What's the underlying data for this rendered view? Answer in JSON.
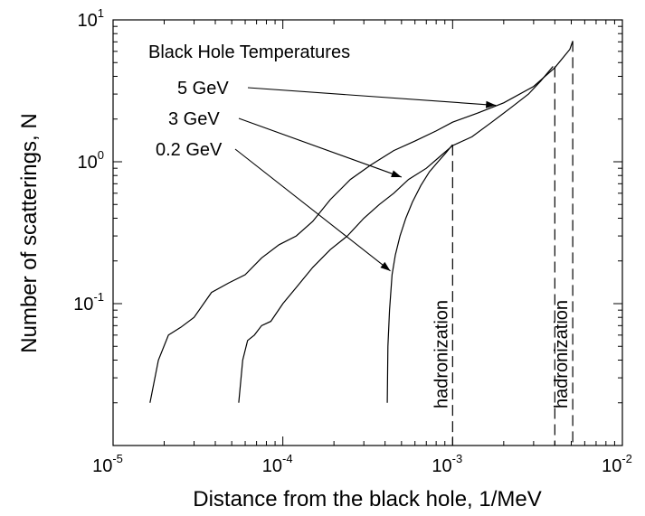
{
  "chart_data": {
    "type": "line",
    "title": "",
    "xlabel": "Distance from the black hole, 1/MeV",
    "ylabel": "Number of scatterings, N",
    "xscale": "log",
    "yscale": "log",
    "xlim": [
      1e-05,
      0.01
    ],
    "ylim": [
      0.01,
      10
    ],
    "x_ticks": [
      {
        "base": "10",
        "exp": "-5",
        "value": 1e-05
      },
      {
        "base": "10",
        "exp": "-4",
        "value": 0.0001
      },
      {
        "base": "10",
        "exp": "-3",
        "value": 0.001
      },
      {
        "base": "10",
        "exp": "-2",
        "value": 0.01
      }
    ],
    "y_ticks": [
      {
        "base": "10",
        "exp": "-1",
        "value": 0.1
      },
      {
        "base": "10",
        "exp": "0",
        "value": 1
      },
      {
        "base": "10",
        "exp": "1",
        "value": 10
      }
    ],
    "legend_title": "Black Hole Temperatures",
    "grid": false,
    "series": [
      {
        "name": "5 GeV",
        "x": [
          1.65e-05,
          1.85e-05,
          2.12e-05,
          2.5e-05,
          3e-05,
          3.8e-05,
          4.8e-05,
          6e-05,
          7.5e-05,
          9.5e-05,
          0.00012,
          0.00015,
          0.00019,
          0.00025,
          0.00033,
          0.00045,
          0.0006,
          0.0008,
          0.001,
          0.0014,
          0.002,
          0.003,
          0.004,
          0.0049,
          0.0051
        ],
        "y": [
          0.02,
          0.04,
          0.06,
          0.068,
          0.08,
          0.12,
          0.14,
          0.16,
          0.21,
          0.26,
          0.3,
          0.38,
          0.54,
          0.75,
          0.95,
          1.2,
          1.4,
          1.65,
          1.9,
          2.2,
          2.6,
          3.4,
          4.6,
          6.2,
          7.1
        ]
      },
      {
        "name": "3 GeV",
        "x": [
          5.5e-05,
          5.8e-05,
          6.2e-05,
          6.8e-05,
          7.5e-05,
          8.5e-05,
          0.0001,
          0.00012,
          0.00015,
          0.00019,
          0.00024,
          0.0003,
          0.00037,
          0.00045,
          0.00055,
          0.0007,
          0.00085,
          0.001,
          0.0013,
          0.0017,
          0.0022,
          0.0028,
          0.0033,
          0.0039
        ],
        "y": [
          0.02,
          0.04,
          0.055,
          0.06,
          0.07,
          0.075,
          0.1,
          0.13,
          0.18,
          0.24,
          0.3,
          0.4,
          0.5,
          0.6,
          0.75,
          0.9,
          1.1,
          1.3,
          1.5,
          1.9,
          2.4,
          3.0,
          3.7,
          4.7
        ]
      },
      {
        "name": "0.2 GeV",
        "x": [
          0.000412,
          0.000416,
          0.000425,
          0.00044,
          0.00046,
          0.00049,
          0.00053,
          0.00058,
          0.00065,
          0.00073,
          0.00082,
          0.00091,
          0.001
        ],
        "y": [
          0.02,
          0.05,
          0.09,
          0.16,
          0.22,
          0.3,
          0.4,
          0.52,
          0.68,
          0.85,
          1.0,
          1.15,
          1.32
        ]
      }
    ],
    "vertical_markers": [
      {
        "x": 0.001,
        "label": "hadronization"
      },
      {
        "x": 0.004,
        "label": ""
      },
      {
        "x": 0.0051,
        "label": "hadronization"
      }
    ],
    "annotations": [
      {
        "text": "5 GeV",
        "points_to": [
          0.0018,
          2.5
        ]
      },
      {
        "text": "3 GeV",
        "points_to": [
          0.0005,
          0.78
        ]
      },
      {
        "text": "0.2 GeV",
        "points_to": [
          0.00043,
          0.17
        ]
      }
    ]
  }
}
